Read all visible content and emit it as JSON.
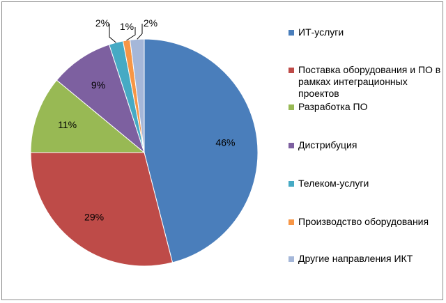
{
  "chart_data": {
    "type": "pie",
    "categories": [
      "ИТ-услуги",
      "Поставка оборудования и ПО в рамках интеграционных проектов",
      "Разработка ПО",
      "Дистрибуция",
      "Телеком-услуги",
      "Производство оборудования",
      "Другие направления ИКТ"
    ],
    "values": [
      46,
      29,
      11,
      9,
      2,
      1,
      2
    ],
    "value_labels": [
      "46%",
      "29%",
      "11%",
      "9%",
      "2%",
      "1%",
      "2%"
    ],
    "colors": [
      "#4a7ebb",
      "#be4b48",
      "#98b954",
      "#7d60a0",
      "#46aac4",
      "#f79646",
      "#a5b7d9"
    ],
    "legend_position": "right"
  }
}
